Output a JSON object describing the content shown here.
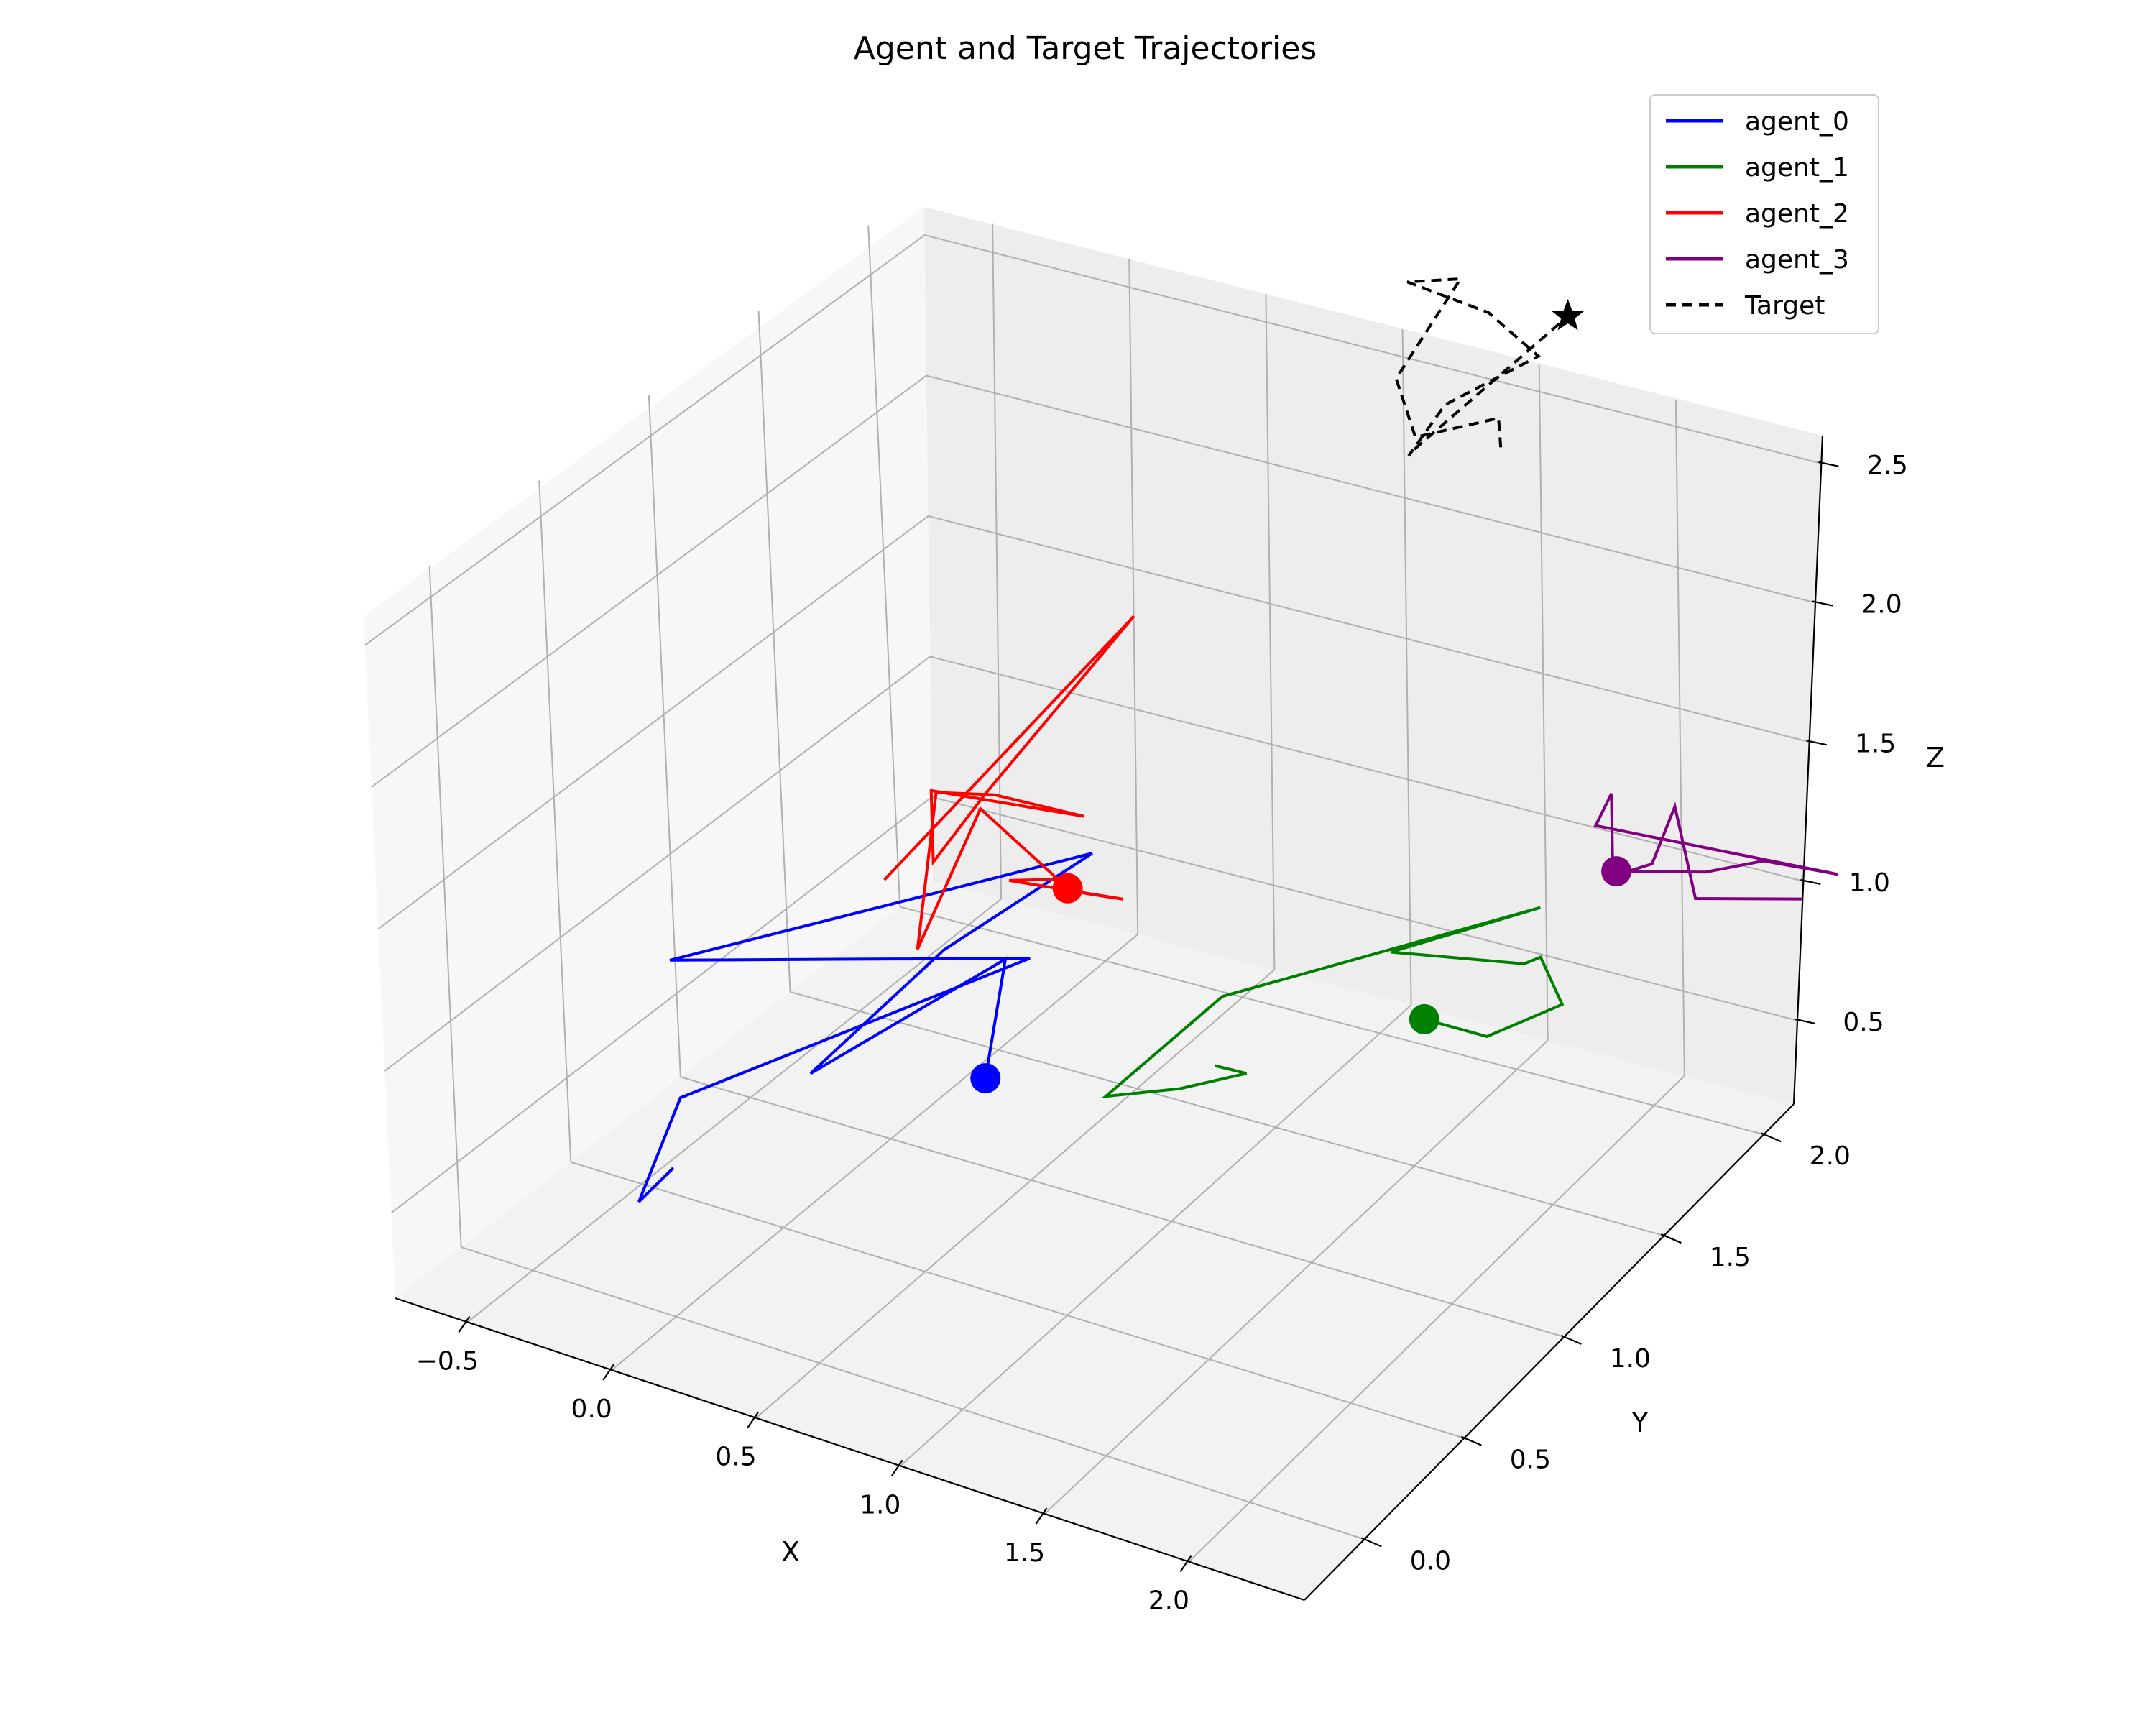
{
  "chart_data": {
    "type": "line3d",
    "title": "Agent and Target Trajectories",
    "xlabel": "X",
    "ylabel": "Y",
    "zlabel": "Z",
    "xlim": [
      -0.75,
      2.4
    ],
    "ylim": [
      -0.3,
      2.15
    ],
    "zlim": [
      0.2,
      2.6
    ],
    "xticks": [
      -0.5,
      0.0,
      0.5,
      1.0,
      1.5,
      2.0
    ],
    "xtick_labels": [
      "−0.5",
      "0.0",
      "0.5",
      "1.0",
      "1.5",
      "2.0"
    ],
    "yticks": [
      0.0,
      0.5,
      1.0,
      1.5,
      2.0
    ],
    "ytick_labels": [
      "0.0",
      "0.5",
      "1.0",
      "1.5",
      "2.0"
    ],
    "zticks": [
      0.5,
      1.0,
      1.5,
      2.0,
      2.5
    ],
    "ztick_labels": [
      "0.5",
      "1.0",
      "1.5",
      "2.0",
      "2.5"
    ],
    "legend_position": "top-right",
    "series": [
      {
        "name": "agent_0",
        "color": "#0000ff",
        "style": "solid",
        "start_marker": "circle",
        "points": [
          [
            0.36,
            0.97,
            0.54
          ],
          [
            0.34,
            1.09,
            0.88
          ],
          [
            0.08,
            0.52,
            0.76
          ],
          [
            0.28,
            0.88,
            1.03
          ],
          [
            0.4,
            1.42,
            1.06
          ],
          [
            -0.37,
            0.46,
            1.06
          ],
          [
            0.42,
            1.1,
            0.9
          ],
          [
            -0.03,
            0.06,
            0.93
          ],
          [
            -0.1,
            -0.04,
            0.6
          ],
          [
            -0.1,
            0.12,
            0.62
          ]
        ]
      },
      {
        "name": "agent_1",
        "color": "#008000",
        "style": "solid",
        "start_marker": "circle",
        "points": [
          [
            1.35,
            1.75,
            0.51
          ],
          [
            1.57,
            1.76,
            0.5
          ],
          [
            1.96,
            1.6,
            0.83
          ],
          [
            1.86,
            1.63,
            0.95
          ],
          [
            1.8,
            1.63,
            0.91
          ],
          [
            1.46,
            1.44,
            0.99
          ],
          [
            1.83,
            1.67,
            1.09
          ],
          [
            1.13,
            1.07,
            0.99
          ],
          [
            0.93,
            0.78,
            0.77
          ],
          [
            1.47,
            0.4,
            1.22
          ],
          [
            1.69,
            0.42,
            1.33
          ],
          [
            1.6,
            0.39,
            1.35
          ]
        ]
      },
      {
        "name": "agent_2",
        "color": "#ff0000",
        "style": "solid",
        "start_marker": "circle",
        "points": [
          [
            0.54,
            1.12,
            1.17
          ],
          [
            0.6,
            1.12,
            1.17
          ],
          [
            0.79,
            1.05,
            1.25
          ],
          [
            0.61,
            0.75,
            1.46
          ],
          [
            0.76,
            0.78,
            1.49
          ],
          [
            0.41,
            0.88,
            1.57
          ],
          [
            0.45,
            0.53,
            1.31
          ],
          [
            0.26,
            0.87,
            1.59
          ],
          [
            0.43,
            0.92,
            1.6
          ],
          [
            0.86,
            0.77,
            1.75
          ],
          [
            0.25,
            0.86,
            1.6
          ],
          [
            0.25,
            0.87,
            1.34
          ],
          [
            0.42,
            0.89,
            1.62
          ],
          [
            0.52,
            1.46,
            1.91
          ],
          [
            0.46,
            0.36,
            1.67
          ]
        ]
      },
      {
        "name": "agent_3",
        "color": "#800080",
        "style": "solid",
        "start_marker": "circle",
        "points": [
          [
            1.84,
            2.03,
            0.97
          ],
          [
            2.1,
            2.12,
            0.97
          ],
          [
            2.26,
            2.19,
            1.0
          ],
          [
            2.46,
            2.29,
            0.93
          ],
          [
            1.92,
            1.82,
            1.3
          ],
          [
            1.97,
            1.83,
            1.42
          ],
          [
            1.96,
            1.85,
            1.11
          ],
          [
            2.11,
            1.84,
            1.2
          ],
          [
            1.95,
            2.17,
            1.13
          ],
          [
            2.18,
            1.96,
            1.01
          ],
          [
            2.4,
            2.19,
            0.9
          ]
        ]
      },
      {
        "name": "Target",
        "color": "#000000",
        "style": "dashed",
        "end_marker": "star",
        "points": [
          [
            1.29,
            2.2,
            2.22
          ],
          [
            1.35,
            2.11,
            2.4
          ],
          [
            1.19,
            1.92,
            2.42
          ],
          [
            1.12,
            1.92,
            2.61
          ],
          [
            1.15,
            2.19,
            2.79
          ],
          [
            1.07,
            2.04,
            2.86
          ],
          [
            1.23,
            2.22,
            2.67
          ],
          [
            1.36,
            2.29,
            2.5
          ],
          [
            1.2,
            2.05,
            2.45
          ],
          [
            1.15,
            1.94,
            2.33
          ],
          [
            1.12,
            2.0,
            2.3
          ],
          [
            1.4,
            2.38,
            2.59
          ]
        ]
      }
    ]
  }
}
